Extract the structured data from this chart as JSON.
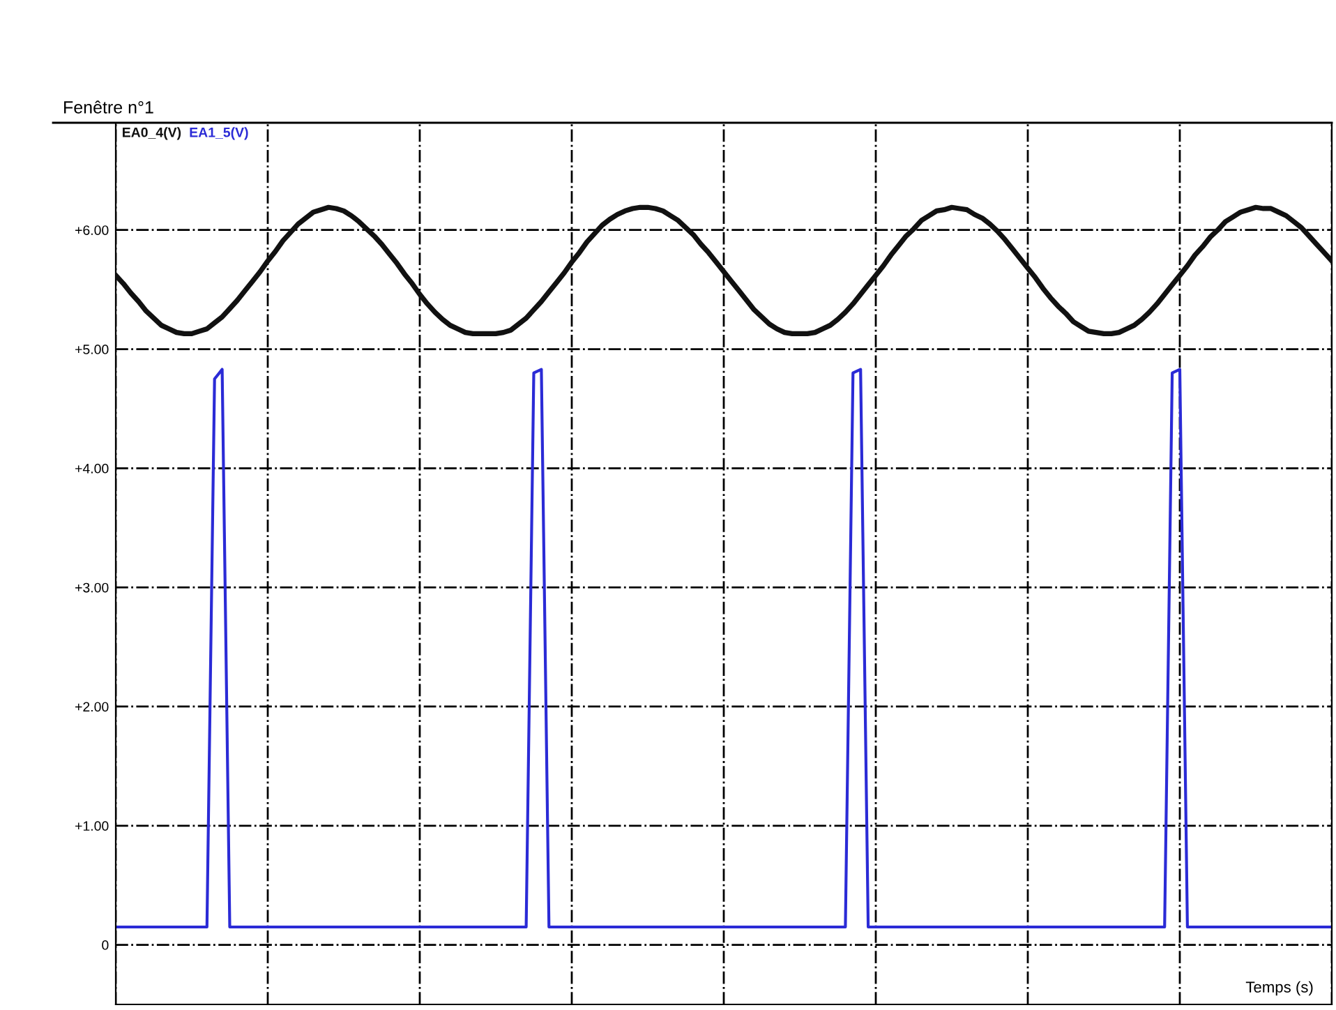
{
  "chart_data": {
    "type": "line",
    "title": "Fenêtre n°1",
    "xlabel": "Temps (s)",
    "categories": [
      null,
      null,
      null,
      null,
      null,
      null,
      null,
      null,
      null,
      null,
      null,
      null,
      null,
      null,
      null,
      null,
      null,
      null,
      null,
      null,
      null,
      null,
      null,
      null,
      null,
      null,
      null,
      null,
      null,
      null,
      null,
      null,
      null,
      null,
      null,
      null,
      null,
      null,
      null,
      null,
      null,
      null,
      null,
      null,
      null,
      null,
      null,
      null,
      null,
      null,
      null,
      null,
      null,
      null,
      null,
      null,
      null,
      null,
      null,
      null,
      null,
      null,
      null,
      null,
      null,
      null,
      null,
      null,
      null,
      null,
      null,
      null,
      null,
      null,
      null,
      null,
      null,
      null,
      null,
      null,
      null,
      null,
      null,
      null,
      null,
      null,
      null,
      null,
      null,
      null,
      null,
      null,
      null,
      null,
      null,
      null,
      null,
      null,
      null,
      null,
      null,
      null,
      null,
      null,
      null,
      null,
      null,
      null,
      null,
      null,
      null,
      null,
      null,
      null,
      null,
      null,
      null,
      null,
      null,
      null,
      null,
      null,
      null,
      null,
      null,
      null,
      null,
      null,
      null,
      null,
      null,
      null,
      null,
      null,
      null,
      null,
      null,
      null,
      null,
      null,
      null,
      null,
      null,
      null,
      null,
      null,
      null,
      null,
      null,
      null,
      null,
      null,
      null,
      null,
      null,
      null,
      null,
      null,
      null,
      null,
      null
    ],
    "series": [
      {
        "name": "EA0_4(V)",
        "color": "#111111",
        "values": [
          5.62,
          5.55,
          5.47,
          5.4,
          5.32,
          5.26,
          5.2,
          5.17,
          5.14,
          5.13,
          5.13,
          5.15,
          5.17,
          5.22,
          5.27,
          5.34,
          5.41,
          5.49,
          5.57,
          5.65,
          5.74,
          5.82,
          5.91,
          5.98,
          6.05,
          6.1,
          6.15,
          6.17,
          6.19,
          6.18,
          6.16,
          6.12,
          6.07,
          6.01,
          5.95,
          5.88,
          5.8,
          5.72,
          5.63,
          5.55,
          5.46,
          5.38,
          5.31,
          5.25,
          5.2,
          5.17,
          5.14,
          5.13,
          5.13,
          5.13,
          5.13,
          5.14,
          5.16,
          5.21,
          5.26,
          5.33,
          5.4,
          5.48,
          5.56,
          5.64,
          5.73,
          5.81,
          5.9,
          5.97,
          6.04,
          6.09,
          6.13,
          6.16,
          6.18,
          6.19,
          6.19,
          6.18,
          6.16,
          6.12,
          6.08,
          6.02,
          5.96,
          5.88,
          5.81,
          5.73,
          5.65,
          5.57,
          5.49,
          5.41,
          5.33,
          5.27,
          5.21,
          5.17,
          5.14,
          5.13,
          5.13,
          5.13,
          5.14,
          5.17,
          5.2,
          5.25,
          5.31,
          5.38,
          5.46,
          5.54,
          5.62,
          5.7,
          5.79,
          5.87,
          5.95,
          6.01,
          6.08,
          6.12,
          6.16,
          6.17,
          6.19,
          6.18,
          6.17,
          6.13,
          6.1,
          6.05,
          5.99,
          5.92,
          5.84,
          5.76,
          5.68,
          5.6,
          5.51,
          5.43,
          5.36,
          5.3,
          5.23,
          5.19,
          5.15,
          5.14,
          5.13,
          5.13,
          5.14,
          5.17,
          5.2,
          5.25,
          5.31,
          5.38,
          5.46,
          5.54,
          5.62,
          5.7,
          5.79,
          5.86,
          5.94,
          6.0,
          6.07,
          6.11,
          6.15,
          6.17,
          6.19,
          6.18,
          6.18,
          6.15,
          6.12,
          6.07,
          6.02,
          5.95,
          5.88,
          5.81,
          5.74
        ]
      },
      {
        "name": "EA1_5(V)",
        "color": "#2b2bd6",
        "values": [
          0.15,
          0.15,
          0.15,
          0.15,
          0.15,
          0.15,
          0.15,
          0.15,
          0.15,
          0.15,
          0.15,
          0.15,
          0.15,
          4.75,
          4.83,
          0.15,
          0.15,
          0.15,
          0.15,
          0.15,
          0.15,
          0.15,
          0.15,
          0.15,
          0.15,
          0.15,
          0.15,
          0.15,
          0.15,
          0.15,
          0.15,
          0.15,
          0.15,
          0.15,
          0.15,
          0.15,
          0.15,
          0.15,
          0.15,
          0.15,
          0.15,
          0.15,
          0.15,
          0.15,
          0.15,
          0.15,
          0.15,
          0.15,
          0.15,
          0.15,
          0.15,
          0.15,
          0.15,
          0.15,
          0.15,
          4.8,
          4.83,
          0.15,
          0.15,
          0.15,
          0.15,
          0.15,
          0.15,
          0.15,
          0.15,
          0.15,
          0.15,
          0.15,
          0.15,
          0.15,
          0.15,
          0.15,
          0.15,
          0.15,
          0.15,
          0.15,
          0.15,
          0.15,
          0.15,
          0.15,
          0.15,
          0.15,
          0.15,
          0.15,
          0.15,
          0.15,
          0.15,
          0.15,
          0.15,
          0.15,
          0.15,
          0.15,
          0.15,
          0.15,
          0.15,
          0.15,
          0.15,
          4.8,
          4.83,
          0.15,
          0.15,
          0.15,
          0.15,
          0.15,
          0.15,
          0.15,
          0.15,
          0.15,
          0.15,
          0.15,
          0.15,
          0.15,
          0.15,
          0.15,
          0.15,
          0.15,
          0.15,
          0.15,
          0.15,
          0.15,
          0.15,
          0.15,
          0.15,
          0.15,
          0.15,
          0.15,
          0.15,
          0.15,
          0.15,
          0.15,
          0.15,
          0.15,
          0.15,
          0.15,
          0.15,
          0.15,
          0.15,
          0.15,
          0.15,
          4.8,
          4.83,
          0.15,
          0.15,
          0.15,
          0.15,
          0.15,
          0.15,
          0.15,
          0.15,
          0.15,
          0.15,
          0.15,
          0.15,
          0.15,
          0.15,
          0.15,
          0.15,
          0.15,
          0.15,
          0.15,
          0.15
        ]
      }
    ],
    "ylim": [
      -0.5,
      6.9
    ],
    "yticks": [
      {
        "value": 0,
        "label": "0"
      },
      {
        "value": 1,
        "label": "+1.00"
      },
      {
        "value": 2,
        "label": "+2.00"
      },
      {
        "value": 3,
        "label": "+3.00"
      },
      {
        "value": 4,
        "label": "+4.00"
      },
      {
        "value": 5,
        "label": "+5.00"
      },
      {
        "value": 6,
        "label": "+6.00"
      }
    ],
    "grid": true,
    "tick_labels": "y",
    "legend": false,
    "marker": "none",
    "line_style": "solid"
  }
}
